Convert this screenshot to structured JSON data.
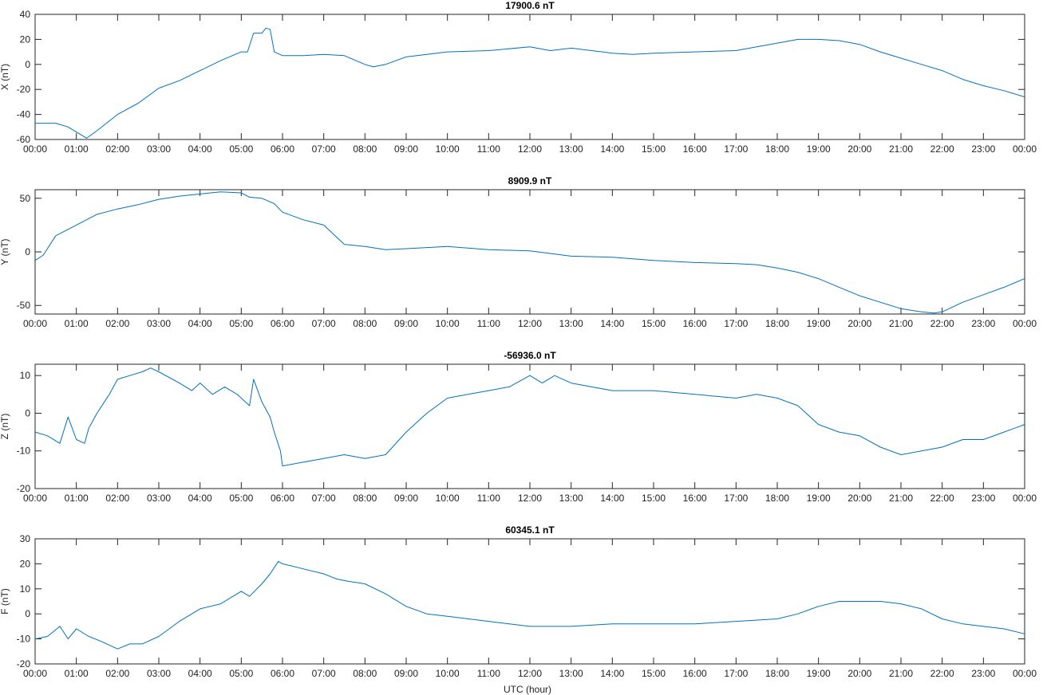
{
  "colors": {
    "series": "#0072BD",
    "axes": "#262626",
    "background": "#ffffff"
  },
  "xlabel": "UTC (hour)",
  "x_tick_labels": [
    "00:00",
    "01:00",
    "02:00",
    "03:00",
    "04:00",
    "05:00",
    "06:00",
    "07:00",
    "08:00",
    "09:00",
    "10:00",
    "11:00",
    "12:00",
    "13:00",
    "14:00",
    "15:00",
    "16:00",
    "17:00",
    "18:00",
    "19:00",
    "20:00",
    "21:00",
    "22:00",
    "23:00",
    "00:00"
  ],
  "chart_data": [
    {
      "type": "line",
      "title": "17900.6 nT",
      "ylabel": "X (nT)",
      "xlim": [
        0,
        24
      ],
      "ylim": [
        -60,
        40
      ],
      "yticks": [
        -60,
        -40,
        -20,
        0,
        20,
        40
      ],
      "grid": false,
      "series": [
        {
          "x": [
            0,
            0.5,
            0.8,
            1.0,
            1.25,
            1.5,
            2.0,
            2.5,
            3.0,
            3.5,
            4.0,
            4.5,
            5.0,
            5.15,
            5.3,
            5.5,
            5.6,
            5.7,
            5.8,
            6.0,
            6.5,
            7.0,
            7.5,
            8.0,
            8.2,
            8.5,
            9.0,
            10.0,
            11.0,
            12.0,
            12.5,
            13.0,
            13.5,
            14.0,
            14.5,
            15.0,
            16.0,
            17.0,
            17.5,
            18.0,
            18.5,
            19.0,
            19.5,
            20.0,
            20.5,
            21.0,
            21.5,
            22.0,
            22.5,
            23.0,
            23.5,
            24.0
          ],
          "y": [
            -47,
            -47,
            -50,
            -54,
            -59,
            -53,
            -40,
            -31,
            -19,
            -13,
            -5,
            3,
            10,
            10,
            25,
            25,
            29,
            28,
            10,
            7,
            7,
            8,
            7,
            0,
            -2,
            0,
            6,
            10,
            11,
            14,
            11,
            13,
            11,
            9,
            8,
            9,
            10,
            11,
            14,
            17,
            20,
            20,
            19,
            16,
            10,
            5,
            0,
            -5,
            -12,
            -17,
            -21,
            -26
          ]
        }
      ]
    },
    {
      "type": "line",
      "title": "8909.9 nT",
      "ylabel": "Y (nT)",
      "xlim": [
        0,
        24
      ],
      "ylim": [
        -58,
        58
      ],
      "yticks": [
        -50,
        0,
        50
      ],
      "grid": false,
      "series": [
        {
          "x": [
            0,
            0.2,
            0.5,
            1.0,
            1.5,
            2.0,
            2.5,
            3.0,
            3.5,
            4.0,
            4.5,
            5.0,
            5.2,
            5.5,
            5.8,
            6.0,
            6.5,
            7.0,
            7.5,
            8.0,
            8.5,
            9.0,
            10.0,
            11.0,
            12.0,
            13.0,
            14.0,
            15.0,
            16.0,
            17.0,
            17.5,
            18.0,
            18.5,
            19.0,
            19.5,
            20.0,
            20.5,
            21.0,
            21.5,
            21.8,
            22.0,
            22.5,
            23.0,
            23.5,
            24.0
          ],
          "y": [
            -8,
            -3,
            15,
            25,
            35,
            40,
            44,
            49,
            52,
            54,
            56,
            55,
            51,
            50,
            45,
            37,
            30,
            25,
            7,
            5,
            2,
            3,
            5,
            2,
            1,
            -4,
            -5,
            -8,
            -10,
            -11,
            -12,
            -15,
            -19,
            -25,
            -33,
            -41,
            -47,
            -53,
            -56,
            -57,
            -56,
            -47,
            -40,
            -33,
            -25
          ]
        }
      ]
    },
    {
      "type": "line",
      "title": "-56936.0 nT",
      "ylabel": "Z (nT)",
      "xlim": [
        0,
        24
      ],
      "ylim": [
        -20,
        13
      ],
      "yticks": [
        -20,
        -10,
        0,
        10
      ],
      "grid": false,
      "series": [
        {
          "x": [
            0,
            0.3,
            0.6,
            0.8,
            1.0,
            1.2,
            1.3,
            1.5,
            1.8,
            2.0,
            2.3,
            2.6,
            2.8,
            3.0,
            3.5,
            3.8,
            4.0,
            4.3,
            4.6,
            4.9,
            5.2,
            5.3,
            5.5,
            5.7,
            5.8,
            5.95,
            6.0,
            6.5,
            7.0,
            7.5,
            8.0,
            8.5,
            9.0,
            9.5,
            10.0,
            10.5,
            11.0,
            11.5,
            12.0,
            12.3,
            12.6,
            13.0,
            13.5,
            14.0,
            15.0,
            16.0,
            17.0,
            17.5,
            18.0,
            18.5,
            19.0,
            19.5,
            20.0,
            20.5,
            21.0,
            21.5,
            22.0,
            22.5,
            23.0,
            23.5,
            24.0
          ],
          "y": [
            -5,
            -6,
            -8,
            -1,
            -7,
            -8,
            -4,
            0,
            5,
            9,
            10,
            11,
            12,
            11,
            8,
            6,
            8,
            5,
            7,
            5,
            2,
            9,
            3,
            -1,
            -5,
            -10,
            -14,
            -13,
            -12,
            -11,
            -12,
            -11,
            -5,
            0,
            4,
            5,
            6,
            7,
            10,
            8,
            10,
            8,
            7,
            6,
            6,
            5,
            4,
            5,
            4,
            2,
            -3,
            -5,
            -6,
            -9,
            -11,
            -10,
            -9,
            -7,
            -7,
            -5,
            -3
          ]
        }
      ]
    },
    {
      "type": "line",
      "title": "60345.1 nT",
      "ylabel": "F (nT)",
      "xlim": [
        0,
        24
      ],
      "ylim": [
        -20,
        30
      ],
      "yticks": [
        -20,
        -10,
        0,
        10,
        20,
        30
      ],
      "grid": false,
      "series": [
        {
          "x": [
            0,
            0.3,
            0.6,
            0.8,
            1.0,
            1.3,
            1.6,
            2.0,
            2.3,
            2.6,
            3.0,
            3.5,
            4.0,
            4.5,
            5.0,
            5.2,
            5.5,
            5.7,
            5.9,
            6.0,
            6.5,
            7.0,
            7.3,
            7.6,
            8.0,
            8.5,
            9.0,
            9.5,
            10.0,
            11.0,
            12.0,
            13.0,
            14.0,
            15.0,
            16.0,
            17.0,
            18.0,
            18.5,
            19.0,
            19.5,
            20.0,
            20.5,
            21.0,
            21.5,
            22.0,
            22.5,
            23.0,
            23.5,
            24.0
          ],
          "y": [
            -10,
            -9,
            -5,
            -10,
            -6,
            -9,
            -11,
            -14,
            -12,
            -12,
            -9,
            -3,
            2,
            4,
            9,
            7,
            12,
            16,
            21,
            20,
            18,
            16,
            14,
            13,
            12,
            8,
            3,
            0,
            -1,
            -3,
            -5,
            -5,
            -4,
            -4,
            -4,
            -3,
            -2,
            0,
            3,
            5,
            5,
            5,
            4,
            2,
            -2,
            -4,
            -5,
            -6,
            -8
          ]
        }
      ]
    }
  ]
}
